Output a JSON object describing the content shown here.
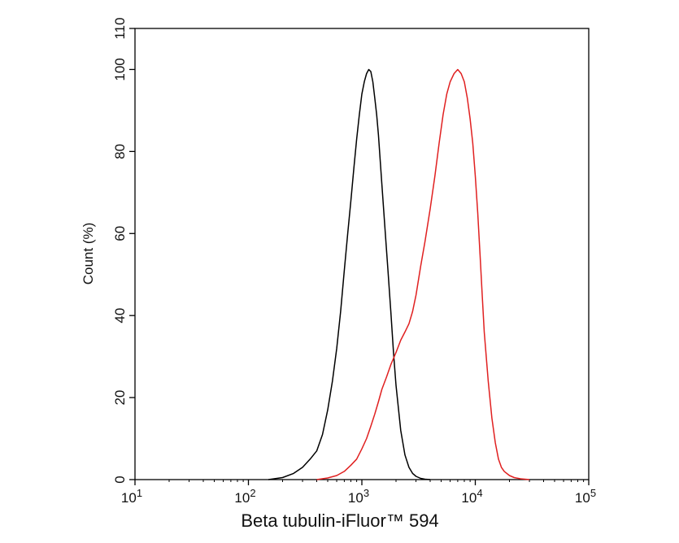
{
  "chart_data": {
    "type": "line",
    "title": "",
    "xlabel": "Beta tubulin-iFluor™ 594",
    "ylabel": "Count (%)",
    "x_scale": "log",
    "xlim": [
      10,
      100000
    ],
    "ylim": [
      0,
      110
    ],
    "x_ticks": [
      {
        "value": 10,
        "base": "10",
        "exp": "1"
      },
      {
        "value": 100,
        "base": "10",
        "exp": "2"
      },
      {
        "value": 1000,
        "base": "10",
        "exp": "3"
      },
      {
        "value": 10000,
        "base": "10",
        "exp": "4"
      },
      {
        "value": 100000,
        "base": "10",
        "exp": "5"
      }
    ],
    "y_ticks": [
      "0",
      "20",
      "40",
      "60",
      "80",
      "100",
      "110"
    ],
    "grid": false,
    "legend": "none",
    "series": [
      {
        "color": "#000000",
        "x": [
          150,
          200,
          250,
          300,
          350,
          400,
          450,
          500,
          550,
          600,
          650,
          700,
          750,
          800,
          850,
          900,
          950,
          1000,
          1050,
          1100,
          1150,
          1200,
          1250,
          1300,
          1350,
          1400,
          1450,
          1500,
          1600,
          1700,
          1800,
          1900,
          2000,
          2200,
          2400,
          2600,
          2800,
          3000,
          3300,
          3600,
          4000
        ],
        "y": [
          0,
          0.5,
          1.5,
          3,
          5,
          7,
          11,
          17,
          24,
          32,
          41,
          51,
          60,
          68,
          76,
          83,
          89,
          94,
          97,
          99,
          100,
          99.5,
          97,
          93,
          89,
          84,
          78,
          72,
          61,
          51,
          41,
          31,
          23,
          12,
          6,
          3,
          1.5,
          0.8,
          0.3,
          0.1,
          0
        ]
      },
      {
        "color": "#e02020",
        "x": [
          400,
          500,
          600,
          700,
          800,
          900,
          1000,
          1100,
          1200,
          1300,
          1400,
          1500,
          1650,
          1800,
          2000,
          2200,
          2400,
          2600,
          2800,
          3000,
          3300,
          3600,
          4000,
          4400,
          4800,
          5200,
          5600,
          6000,
          6500,
          7000,
          7500,
          8000,
          8500,
          9000,
          9500,
          10000,
          10500,
          11000,
          11500,
          12000,
          13000,
          14000,
          15000,
          16000,
          17000,
          18000,
          20000,
          22000,
          25000,
          30000
        ],
        "y": [
          0,
          0.4,
          1,
          2,
          3.5,
          5,
          7.5,
          10,
          13,
          16,
          19,
          22,
          25,
          28,
          31,
          34,
          36,
          38,
          41,
          45,
          52,
          58,
          66,
          74,
          82,
          89,
          94,
          97,
          99,
          100,
          99,
          97,
          93,
          88,
          82,
          74,
          65,
          55,
          45,
          36,
          24,
          15,
          9,
          5,
          3,
          2,
          1,
          0.5,
          0.2,
          0
        ]
      }
    ]
  }
}
